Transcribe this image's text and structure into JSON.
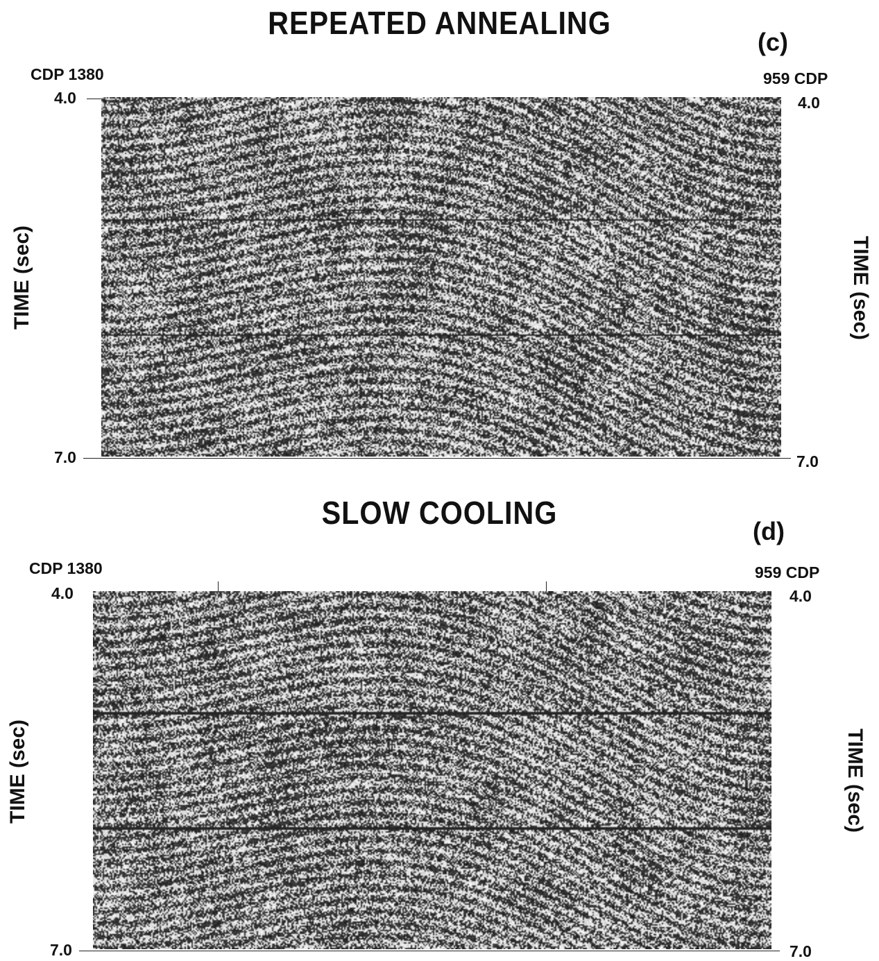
{
  "panels": [
    {
      "title": "REPEATED ANNEALING",
      "label": "(c)",
      "cdp_left": "CDP 1380",
      "cdp_right": "959 CDP",
      "time_top": "4.0",
      "time_bottom": "7.0",
      "ylabel": "TIME (sec)",
      "reflectors": [
        0.34,
        0.66
      ],
      "seed": 7
    },
    {
      "title": "SLOW COOLING",
      "label": "(d)",
      "cdp_left": "CDP 1380",
      "cdp_right": "959 CDP",
      "time_top": "4.0",
      "time_bottom": "7.0",
      "ylabel": "TIME (sec)",
      "reflectors": [
        0.34,
        0.66
      ],
      "seed": 19
    }
  ]
}
